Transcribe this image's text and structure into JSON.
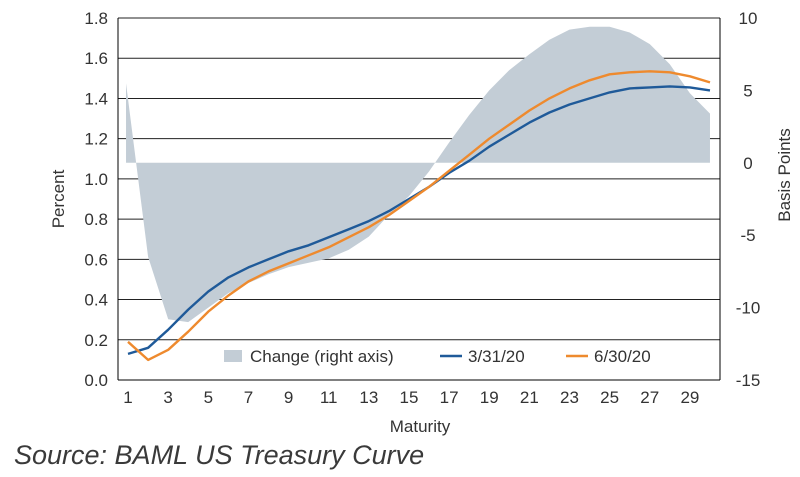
{
  "source": "Source: BAML US Treasury Curve",
  "chart_data": {
    "type": "line",
    "xlabel": "Maturity",
    "ylabel": "Percent",
    "y2label": "Basis Points",
    "xticks": [
      1,
      3,
      5,
      7,
      9,
      11,
      13,
      15,
      17,
      19,
      21,
      23,
      25,
      27,
      29
    ],
    "yticks": [
      0.0,
      0.2,
      0.4,
      0.6,
      0.8,
      1.0,
      1.2,
      1.4,
      1.6,
      1.8
    ],
    "ytick_labels": [
      "0.0",
      "0.2",
      "0.4",
      "0.6",
      "0.8",
      "1.0",
      "1.2",
      "1.4",
      "1.6",
      "1.8"
    ],
    "y2ticks": [
      -15,
      -10,
      -5,
      0,
      5,
      10
    ],
    "xlim": [
      0.5,
      30.5
    ],
    "ylim": [
      0.0,
      1.8
    ],
    "y2lim": [
      -15,
      10
    ],
    "grid": true,
    "legend_position": "bottom-right",
    "x": [
      1,
      2,
      3,
      4,
      5,
      6,
      7,
      8,
      9,
      10,
      11,
      12,
      13,
      14,
      15,
      16,
      17,
      18,
      19,
      20,
      21,
      22,
      23,
      24,
      25,
      26,
      27,
      28,
      29,
      30
    ],
    "series": [
      {
        "name": "Change (right axis)",
        "type": "area",
        "axis": "right",
        "color": "#c3cdd6",
        "values": [
          5.5,
          -6.5,
          -10.8,
          -11.0,
          -10.0,
          -9.0,
          -8.3,
          -7.7,
          -7.2,
          -6.9,
          -6.6,
          -6.0,
          -5.1,
          -3.6,
          -2.3,
          -0.6,
          1.4,
          3.3,
          5.0,
          6.4,
          7.5,
          8.5,
          9.2,
          9.4,
          9.4,
          9.0,
          8.2,
          6.8,
          4.8,
          3.4
        ]
      },
      {
        "name": "3/31/20",
        "type": "line",
        "axis": "left",
        "color": "#1f5a99",
        "values": [
          0.13,
          0.16,
          0.25,
          0.35,
          0.44,
          0.51,
          0.56,
          0.6,
          0.64,
          0.67,
          0.71,
          0.75,
          0.79,
          0.84,
          0.9,
          0.96,
          1.03,
          1.09,
          1.16,
          1.22,
          1.28,
          1.33,
          1.37,
          1.4,
          1.43,
          1.45,
          1.455,
          1.46,
          1.455,
          1.44
        ]
      },
      {
        "name": "6/30/20",
        "type": "line",
        "axis": "left",
        "color": "#ee8a2e",
        "values": [
          0.19,
          0.1,
          0.15,
          0.24,
          0.34,
          0.42,
          0.49,
          0.54,
          0.58,
          0.62,
          0.66,
          0.71,
          0.76,
          0.82,
          0.89,
          0.96,
          1.04,
          1.12,
          1.2,
          1.27,
          1.34,
          1.4,
          1.45,
          1.49,
          1.52,
          1.53,
          1.535,
          1.53,
          1.51,
          1.48
        ]
      }
    ]
  }
}
